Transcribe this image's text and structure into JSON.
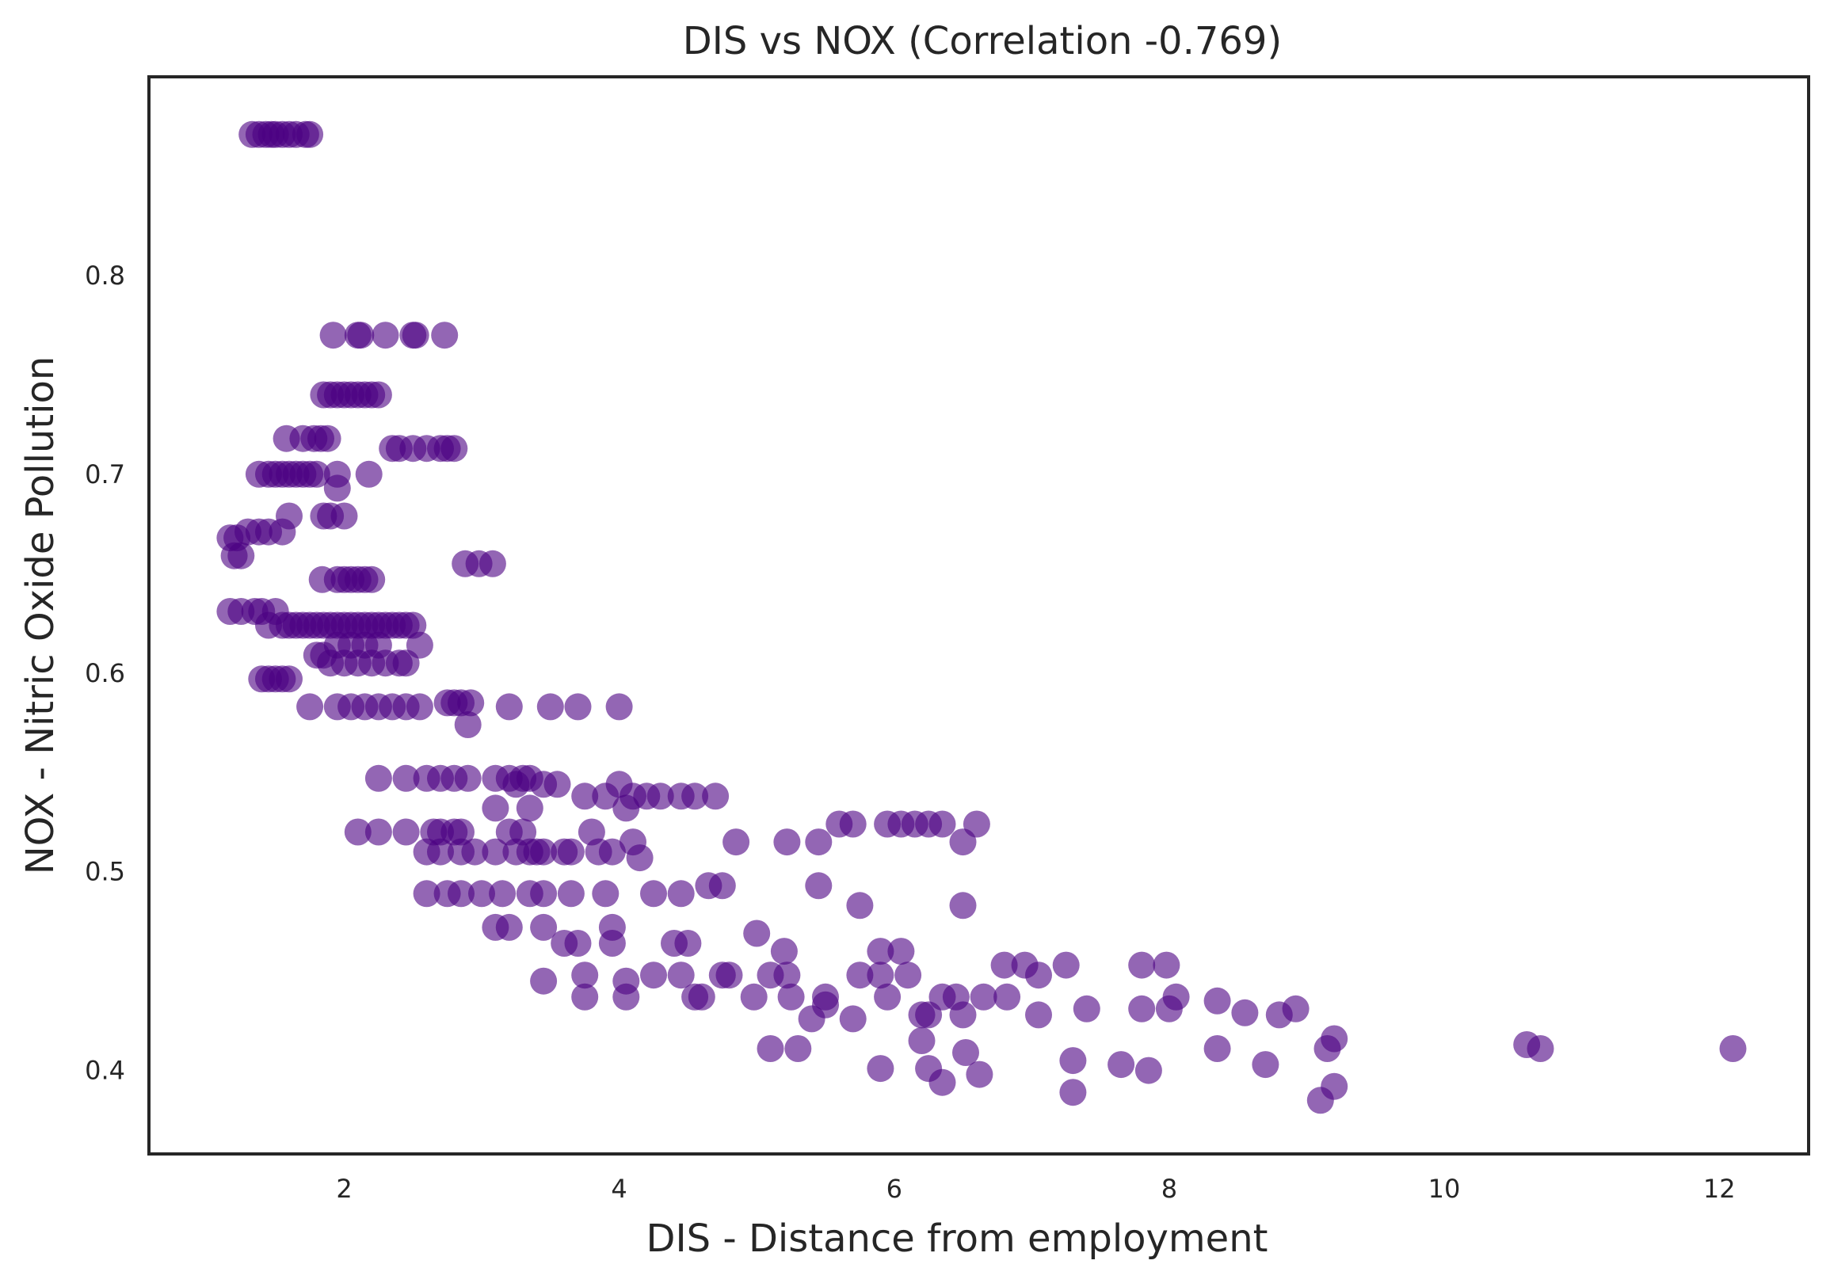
{
  "chart_data": {
    "type": "scatter",
    "title": "DIS vs NOX (Correlation -0.769)",
    "xlabel": "DIS - Distance from employment",
    "ylabel": "NOX - Nitric Oxide Pollution",
    "xlim": [
      0.58,
      12.65
    ],
    "ylim": [
      0.358,
      0.9
    ],
    "xticks": [
      2,
      4,
      6,
      8,
      10,
      12
    ],
    "yticks": [
      0.4,
      0.5,
      0.6,
      0.7,
      0.8
    ],
    "xtick_labels": [
      "2",
      "4",
      "6",
      "8",
      "10",
      "12"
    ],
    "ytick_labels": [
      "0.4",
      "0.5",
      "0.6",
      "0.7",
      "0.8"
    ],
    "grid": false,
    "marker_color": "#4b0082",
    "marker_alpha": 0.6,
    "series": [
      {
        "x": [
          1.33,
          1.38,
          1.43,
          1.47,
          1.5,
          1.55,
          1.6,
          1.65,
          1.72,
          1.75,
          1.92,
          2.1,
          2.12,
          2.3,
          2.5,
          2.52,
          2.73,
          1.85,
          1.9,
          1.95,
          2.0,
          2.05,
          2.1,
          2.15,
          2.2,
          2.25,
          1.58,
          1.7,
          1.78,
          1.83,
          1.88,
          1.95,
          2.35,
          2.4,
          2.5,
          2.6,
          2.7,
          2.75,
          2.8,
          1.38,
          1.45,
          1.5,
          1.55,
          1.6,
          1.65,
          1.7,
          1.75,
          1.8,
          1.95,
          2.18,
          1.17,
          1.22,
          1.3,
          1.38,
          1.45,
          1.55,
          1.6,
          1.85,
          1.9,
          2.0,
          1.2,
          1.25,
          2.88,
          2.98,
          3.08,
          1.17,
          1.25,
          1.35,
          1.4,
          1.45,
          1.5,
          1.55,
          1.6,
          1.65,
          1.7,
          1.75,
          1.8,
          1.85,
          1.9,
          1.95,
          2.0,
          2.05,
          2.1,
          2.15,
          2.2,
          2.25,
          2.3,
          2.35,
          2.4,
          2.45,
          2.5,
          2.55,
          1.84,
          1.95,
          2.0,
          2.05,
          2.1,
          2.15,
          2.2,
          1.8,
          1.85,
          1.9,
          2.0,
          2.1,
          2.2,
          2.3,
          2.4,
          2.45,
          1.95,
          2.05,
          2.15,
          2.25,
          1.4,
          1.45,
          1.5,
          1.55,
          1.6,
          1.75,
          1.95,
          2.05,
          2.15,
          2.25,
          2.35,
          2.45,
          2.55,
          2.75,
          2.8,
          2.85,
          2.9,
          2.92,
          3.2,
          3.5,
          3.7,
          4.0,
          2.25,
          2.45,
          2.6,
          2.7,
          2.8,
          2.9,
          3.1,
          3.2,
          3.25,
          3.3,
          3.35,
          3.45,
          3.55,
          3.75,
          3.9,
          4.0,
          4.1,
          4.2,
          4.3,
          4.45,
          4.55,
          4.7,
          3.1,
          3.35,
          4.05,
          2.1,
          2.25,
          2.45,
          2.65,
          2.7,
          2.8,
          2.85,
          3.2,
          3.3,
          3.8,
          4.1,
          4.85,
          5.22,
          5.45,
          5.6,
          5.7,
          5.95,
          6.05,
          6.15,
          6.25,
          6.35,
          6.5,
          6.6,
          2.6,
          2.7,
          2.85,
          2.95,
          3.1,
          3.25,
          3.35,
          3.4,
          3.45,
          3.6,
          3.65,
          3.85,
          3.95,
          4.15,
          2.6,
          2.75,
          2.85,
          3.0,
          3.15,
          3.35,
          3.45,
          3.65,
          3.9,
          4.25,
          4.45,
          4.65,
          4.75,
          5.45,
          5.75,
          6.5,
          3.1,
          3.2,
          3.45,
          3.95,
          3.6,
          3.7,
          3.95,
          4.4,
          4.5,
          5.0,
          5.2,
          5.9,
          6.05,
          3.45,
          3.75,
          4.05,
          4.25,
          4.45,
          4.75,
          4.8,
          5.1,
          5.22,
          5.75,
          5.9,
          6.1,
          6.8,
          6.95,
          7.05,
          7.25,
          7.8,
          7.98,
          8.35,
          8.55,
          3.75,
          4.05,
          4.55,
          4.6,
          4.98,
          5.25,
          5.5,
          5.5,
          5.95,
          6.35,
          6.45,
          6.65,
          6.82,
          8.05,
          5.4,
          5.7,
          6.2,
          6.25,
          6.5,
          7.05,
          7.4,
          7.8,
          8.0,
          8.8,
          8.92,
          5.1,
          5.3,
          5.9,
          6.25,
          6.52,
          7.3,
          7.65,
          7.85,
          8.35,
          8.7,
          9.15,
          9.2,
          10.6,
          10.7,
          12.1,
          6.2,
          6.35,
          6.62,
          7.3,
          9.1,
          9.2
        ],
        "y": [
          0.871,
          0.871,
          0.871,
          0.871,
          0.871,
          0.871,
          0.871,
          0.871,
          0.871,
          0.871,
          0.77,
          0.77,
          0.77,
          0.77,
          0.77,
          0.77,
          0.77,
          0.74,
          0.74,
          0.74,
          0.74,
          0.74,
          0.74,
          0.74,
          0.74,
          0.74,
          0.718,
          0.718,
          0.718,
          0.718,
          0.718,
          0.7,
          0.713,
          0.713,
          0.713,
          0.713,
          0.713,
          0.713,
          0.713,
          0.7,
          0.7,
          0.7,
          0.7,
          0.7,
          0.7,
          0.7,
          0.7,
          0.7,
          0.693,
          0.7,
          0.668,
          0.668,
          0.671,
          0.671,
          0.671,
          0.671,
          0.679,
          0.679,
          0.679,
          0.679,
          0.659,
          0.659,
          0.655,
          0.655,
          0.655,
          0.631,
          0.631,
          0.631,
          0.631,
          0.624,
          0.631,
          0.624,
          0.624,
          0.624,
          0.624,
          0.624,
          0.624,
          0.624,
          0.624,
          0.624,
          0.624,
          0.624,
          0.624,
          0.624,
          0.624,
          0.624,
          0.624,
          0.624,
          0.624,
          0.624,
          0.624,
          0.614,
          0.647,
          0.647,
          0.647,
          0.647,
          0.647,
          0.647,
          0.647,
          0.609,
          0.609,
          0.605,
          0.605,
          0.605,
          0.605,
          0.605,
          0.605,
          0.605,
          0.614,
          0.614,
          0.614,
          0.614,
          0.597,
          0.597,
          0.597,
          0.597,
          0.597,
          0.583,
          0.583,
          0.583,
          0.583,
          0.583,
          0.583,
          0.583,
          0.583,
          0.585,
          0.585,
          0.585,
          0.574,
          0.585,
          0.583,
          0.583,
          0.583,
          0.583,
          0.547,
          0.547,
          0.547,
          0.547,
          0.547,
          0.547,
          0.547,
          0.547,
          0.544,
          0.547,
          0.547,
          0.544,
          0.544,
          0.538,
          0.538,
          0.544,
          0.538,
          0.538,
          0.538,
          0.538,
          0.538,
          0.538,
          0.532,
          0.532,
          0.532,
          0.52,
          0.52,
          0.52,
          0.52,
          0.52,
          0.52,
          0.52,
          0.52,
          0.52,
          0.52,
          0.515,
          0.515,
          0.515,
          0.515,
          0.524,
          0.524,
          0.524,
          0.524,
          0.524,
          0.524,
          0.524,
          0.515,
          0.524,
          0.51,
          0.51,
          0.51,
          0.51,
          0.51,
          0.51,
          0.51,
          0.51,
          0.51,
          0.51,
          0.51,
          0.51,
          0.51,
          0.507,
          0.489,
          0.489,
          0.489,
          0.489,
          0.489,
          0.489,
          0.489,
          0.489,
          0.489,
          0.489,
          0.489,
          0.493,
          0.493,
          0.493,
          0.483,
          0.483,
          0.472,
          0.472,
          0.472,
          0.472,
          0.464,
          0.464,
          0.464,
          0.464,
          0.464,
          0.469,
          0.46,
          0.46,
          0.46,
          0.445,
          0.448,
          0.445,
          0.448,
          0.448,
          0.448,
          0.448,
          0.448,
          0.448,
          0.448,
          0.448,
          0.448,
          0.453,
          0.453,
          0.448,
          0.453,
          0.453,
          0.453,
          0.435,
          0.429,
          0.437,
          0.437,
          0.437,
          0.437,
          0.437,
          0.437,
          0.437,
          0.433,
          0.437,
          0.437,
          0.437,
          0.437,
          0.437,
          0.437,
          0.426,
          0.426,
          0.428,
          0.428,
          0.428,
          0.428,
          0.431,
          0.431,
          0.431,
          0.428,
          0.431,
          0.411,
          0.411,
          0.401,
          0.401,
          0.409,
          0.405,
          0.403,
          0.4,
          0.411,
          0.403,
          0.411,
          0.416,
          0.413,
          0.411,
          0.411,
          0.415,
          0.394,
          0.398,
          0.389,
          0.385,
          0.392
        ]
      }
    ]
  }
}
